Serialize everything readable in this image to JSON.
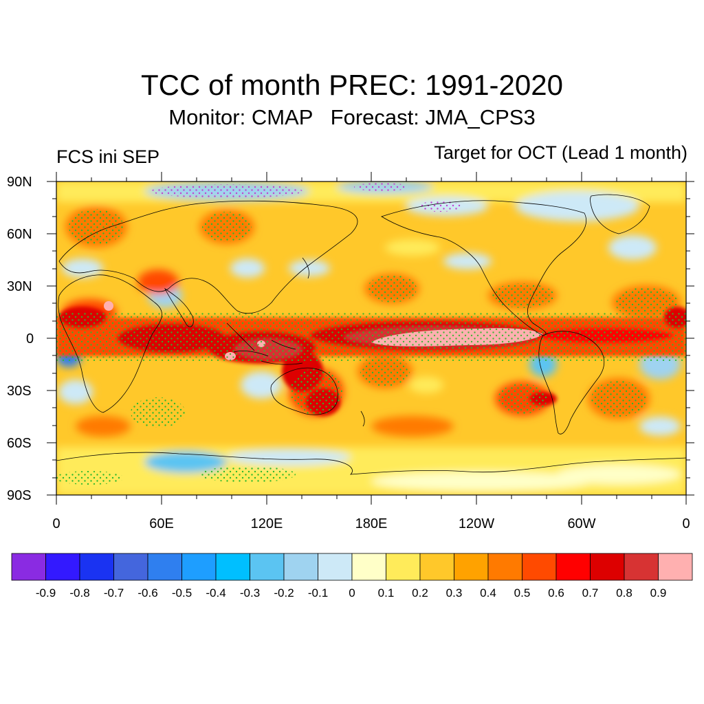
{
  "title": "TCC of month PREC: 1991-2020",
  "subtitle": "Monitor: CMAP   Forecast: JMA_CPS3",
  "left_label": "FCS ini SEP",
  "right_label": "Target for OCT (Lead 1 month)",
  "map": {
    "projection": "cylindrical-equidistant",
    "lon_range": [
      0,
      360
    ],
    "lat_range": [
      -90,
      90
    ],
    "lat_ticks": [
      "90N",
      "60N",
      "30N",
      "0",
      "30S",
      "60S",
      "90S"
    ],
    "lon_ticks": [
      "0",
      "60E",
      "120E",
      "180E",
      "120W",
      "60W",
      "0"
    ],
    "stippling": "green dots where significant",
    "hatching_color": "#2db82d"
  },
  "colorbar": {
    "colors": [
      "#8a2be2",
      "#3319ff",
      "#1a33f2",
      "#4466dd",
      "#2f7fef",
      "#1e9eff",
      "#00bfff",
      "#5bc4f2",
      "#9fd3f0",
      "#cde9f7",
      "#ffffc8",
      "#ffeb5a",
      "#ffc82a",
      "#ffa200",
      "#ff7a00",
      "#ff4a00",
      "#ff0000",
      "#dd0000",
      "#d73333",
      "#ffb0b0"
    ],
    "tick_labels": [
      "-0.9",
      "-0.8",
      "-0.7",
      "-0.6",
      "-0.5",
      "-0.4",
      "-0.3",
      "-0.2",
      "-0.1",
      "0",
      "0.1",
      "0.2",
      "0.3",
      "0.4",
      "0.5",
      "0.6",
      "0.7",
      "0.8",
      "0.9"
    ]
  }
}
